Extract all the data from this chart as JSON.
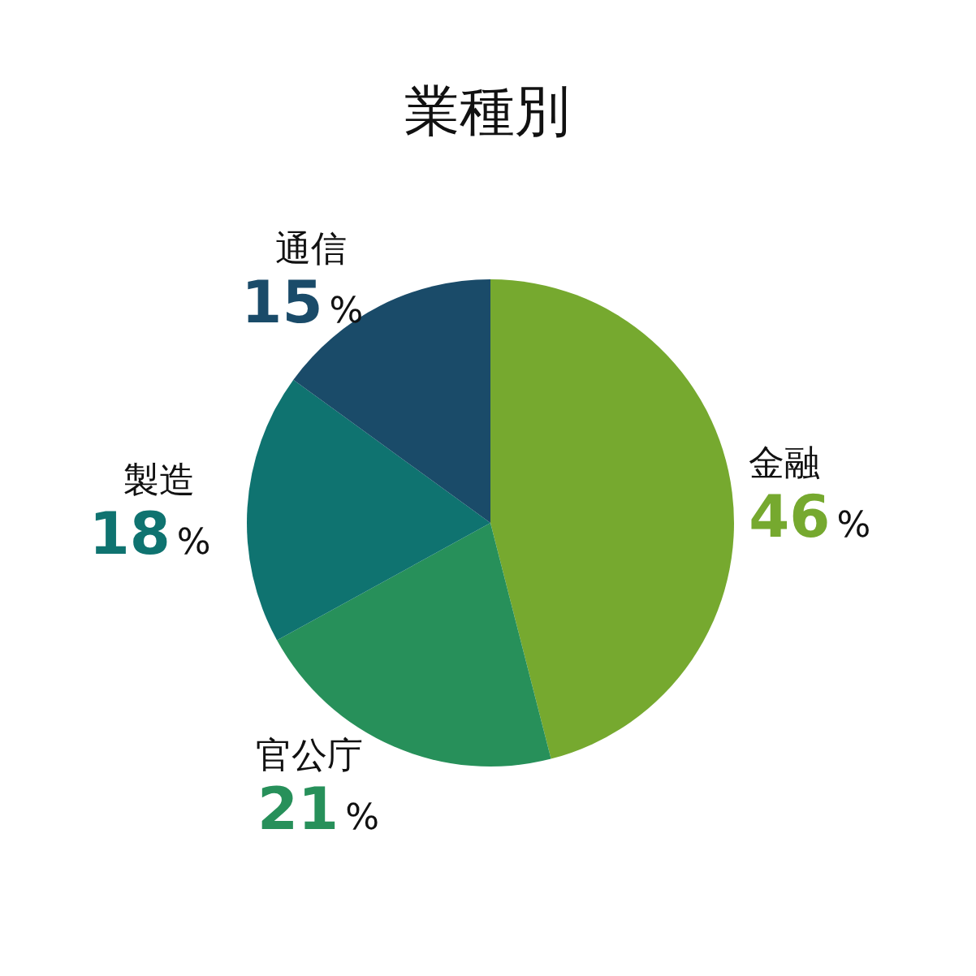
{
  "chart_data": {
    "type": "pie",
    "title": "業種別",
    "categories": [
      "金融",
      "官公庁",
      "製造",
      "通信"
    ],
    "values": [
      46,
      21,
      18,
      15
    ],
    "colors": [
      "#76a92f",
      "#27905a",
      "#0f7370",
      "#1a4b69"
    ],
    "value_labels": [
      "46%",
      "21%",
      "18%",
      "15%"
    ]
  }
}
